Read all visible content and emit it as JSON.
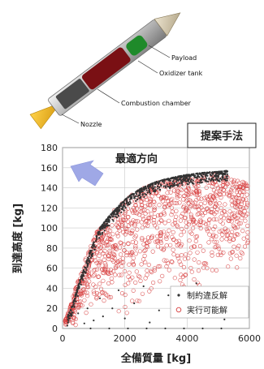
{
  "diagram": {
    "labels": {
      "payload": "Payload",
      "oxidizer_tank": "Oxidizer tank",
      "combustion_chamber": "Combustion chamber",
      "nozzle": "Nozzle"
    }
  },
  "chart_data": {
    "type": "scatter",
    "method_label": "提案手法",
    "annotation": "最適方向",
    "xlabel": "全備質量 [kg]",
    "ylabel": "到達高度 [kg]",
    "xlim": [
      0,
      6000
    ],
    "ylim": [
      0,
      180
    ],
    "xticks": [
      "0",
      "2000",
      "4000",
      "6000"
    ],
    "yticks": [
      "0",
      "20",
      "40",
      "60",
      "80",
      "100",
      "120",
      "140",
      "160",
      "180"
    ],
    "grid": true,
    "legend_position": "bottom-right",
    "series": [
      {
        "name": "制約違反解",
        "marker": "dot",
        "color": "#333333",
        "frontier": [
          [
            300,
            22
          ],
          [
            600,
            52
          ],
          [
            900,
            78
          ],
          [
            1200,
            100
          ],
          [
            1500,
            112
          ],
          [
            1800,
            122
          ],
          [
            2100,
            131
          ],
          [
            2500,
            139
          ],
          [
            3000,
            146
          ],
          [
            3500,
            150
          ],
          [
            4000,
            153
          ],
          [
            4500,
            155
          ],
          [
            5000,
            156
          ],
          [
            5300,
            157
          ]
        ],
        "sample_points": [
          [
            500,
            15
          ],
          [
            700,
            5
          ],
          [
            800,
            20
          ],
          [
            1000,
            8
          ],
          [
            1200,
            30
          ],
          [
            1300,
            12
          ],
          [
            1600,
            20
          ],
          [
            1800,
            38
          ],
          [
            2000,
            10
          ],
          [
            2300,
            25
          ],
          [
            2600,
            42
          ],
          [
            2800,
            6
          ],
          [
            3100,
            18
          ],
          [
            3400,
            33
          ],
          [
            3700,
            12
          ],
          [
            4000,
            28
          ],
          [
            4300,
            45
          ],
          [
            4600,
            16
          ],
          [
            4900,
            22
          ],
          [
            5200,
            9
          ],
          [
            5600,
            14
          ],
          [
            900,
            0
          ],
          [
            1500,
            0
          ],
          [
            2100,
            0
          ],
          [
            2700,
            0
          ],
          [
            3300,
            0
          ],
          [
            3900,
            0
          ],
          [
            4500,
            0
          ],
          [
            5100,
            0
          ]
        ]
      },
      {
        "name": "実行可能解",
        "marker": "circle",
        "color": "#d63a3a",
        "frontier": [
          [
            200,
            18
          ],
          [
            500,
            48
          ],
          [
            800,
            75
          ],
          [
            1100,
            96
          ],
          [
            1400,
            110
          ],
          [
            1700,
            120
          ],
          [
            2000,
            128
          ],
          [
            2400,
            137
          ],
          [
            2900,
            144
          ],
          [
            3400,
            149
          ],
          [
            3900,
            152
          ],
          [
            4400,
            154
          ],
          [
            4900,
            153
          ],
          [
            5400,
            150
          ],
          [
            5900,
            147
          ]
        ],
        "lower_bound": [
          [
            300,
            0
          ],
          [
            1000,
            4
          ],
          [
            2000,
            10
          ],
          [
            3000,
            18
          ],
          [
            4000,
            30
          ],
          [
            5000,
            45
          ],
          [
            5900,
            60
          ]
        ]
      }
    ]
  }
}
